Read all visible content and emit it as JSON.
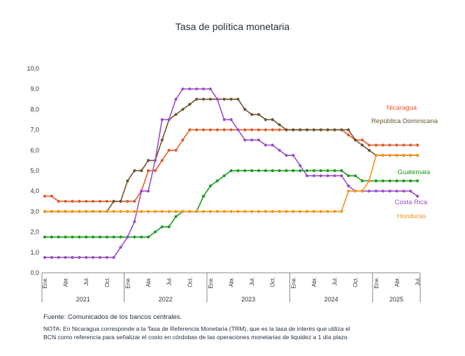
{
  "chart_data": {
    "type": "line",
    "title": "Tasa de política monetaria",
    "xlabel": "",
    "ylabel": "",
    "ylim": [
      0,
      10
    ],
    "yticks": [
      "0,0",
      "1,0",
      "2,0",
      "3,0",
      "4,0",
      "5,0",
      "6,0",
      "7,0",
      "8,0",
      "9,0",
      "10,0"
    ],
    "grid": false,
    "legend": "inline labels at right end of series",
    "x": [
      "Ene. 2021",
      "Feb. 2021",
      "Mar. 2021",
      "Abr. 2021",
      "May. 2021",
      "Jun. 2021",
      "Jul. 2021",
      "Ago. 2021",
      "Sep. 2021",
      "Oct. 2021",
      "Nov. 2021",
      "Dic. 2021",
      "Ene. 2022",
      "Feb. 2022",
      "Mar. 2022",
      "Abr. 2022",
      "May. 2022",
      "Jun. 2022",
      "Jul. 2022",
      "Ago. 2022",
      "Sep. 2022",
      "Oct. 2022",
      "Nov. 2022",
      "Dic. 2022",
      "Ene. 2023",
      "Feb. 2023",
      "Mar. 2023",
      "Abr. 2023",
      "May. 2023",
      "Jun. 2023",
      "Jul. 2023",
      "Ago. 2023",
      "Sep. 2023",
      "Oct. 2023",
      "Nov. 2023",
      "Dic. 2023",
      "Ene. 2024",
      "Feb. 2024",
      "Mar. 2024",
      "Abr. 2024",
      "May. 2024",
      "Jun. 2024",
      "Jul. 2024",
      "Ago. 2024",
      "Sep. 2024",
      "Oct. 2024",
      "Nov. 2024",
      "Dic. 2024",
      "Ene. 2025",
      "Feb. 2025",
      "Mar. 2025",
      "Abr. 2025",
      "May. 2025",
      "Jun. 2025",
      "Jul. 2025"
    ],
    "x_tick_labels": [
      "Ene.",
      "Abr.",
      "Jul.",
      "Oct.",
      "Ene.",
      "Abr.",
      "Jul.",
      "Oct.",
      "Ene.",
      "Abr.",
      "Jul.",
      "Oct.",
      "Ene.",
      "Abr.",
      "Jul.",
      "Oct.",
      "Ene.",
      "Abr.",
      "Jul."
    ],
    "x_tick_months": [
      0,
      3,
      6,
      9,
      12,
      15,
      18,
      21,
      24,
      27,
      30,
      33,
      36,
      39,
      42,
      45,
      48,
      51,
      54
    ],
    "year_labels": [
      "2021",
      "2022",
      "2023",
      "2024",
      "2025"
    ],
    "series": [
      {
        "name": "Nicaragua",
        "color": "#e35a2b",
        "values": [
          3.75,
          3.75,
          3.5,
          3.5,
          3.5,
          3.5,
          3.5,
          3.5,
          3.5,
          3.5,
          3.5,
          3.5,
          3.5,
          3.5,
          4.0,
          5.0,
          5.0,
          5.5,
          6.0,
          6.0,
          6.5,
          7.0,
          7.0,
          7.0,
          7.0,
          7.0,
          7.0,
          7.0,
          7.0,
          7.0,
          7.0,
          7.0,
          7.0,
          7.0,
          7.0,
          7.0,
          7.0,
          7.0,
          7.0,
          7.0,
          7.0,
          7.0,
          7.0,
          7.0,
          6.75,
          6.5,
          6.5,
          6.25,
          6.25,
          6.25,
          6.25,
          6.25,
          6.25,
          6.25,
          6.25
        ]
      },
      {
        "name": "República Dominicana",
        "color": "#6e5530",
        "values": [
          3.0,
          3.0,
          3.0,
          3.0,
          3.0,
          3.0,
          3.0,
          3.0,
          3.0,
          3.0,
          3.5,
          3.5,
          4.5,
          5.0,
          5.0,
          5.5,
          5.5,
          6.5,
          7.5,
          7.75,
          8.0,
          8.25,
          8.5,
          8.5,
          8.5,
          8.5,
          8.5,
          8.5,
          8.5,
          8.0,
          7.75,
          7.75,
          7.5,
          7.5,
          7.25,
          7.0,
          7.0,
          7.0,
          7.0,
          7.0,
          7.0,
          7.0,
          7.0,
          7.0,
          7.0,
          6.5,
          6.25,
          6.0,
          5.75,
          5.75,
          5.75,
          5.75,
          5.75,
          5.75,
          5.75
        ]
      },
      {
        "name": "Guatemala",
        "color": "#1f9a1f",
        "values": [
          1.75,
          1.75,
          1.75,
          1.75,
          1.75,
          1.75,
          1.75,
          1.75,
          1.75,
          1.75,
          1.75,
          1.75,
          1.75,
          1.75,
          1.75,
          1.75,
          2.0,
          2.25,
          2.25,
          2.75,
          3.0,
          3.0,
          3.0,
          3.75,
          4.25,
          4.5,
          4.75,
          5.0,
          5.0,
          5.0,
          5.0,
          5.0,
          5.0,
          5.0,
          5.0,
          5.0,
          5.0,
          5.0,
          5.0,
          5.0,
          5.0,
          5.0,
          5.0,
          5.0,
          4.75,
          4.75,
          4.5,
          4.5,
          4.5,
          4.5,
          4.5,
          4.5,
          4.5,
          4.5,
          4.5
        ]
      },
      {
        "name": "Costa Rica",
        "color": "#9b4fc8",
        "values": [
          0.75,
          0.75,
          0.75,
          0.75,
          0.75,
          0.75,
          0.75,
          0.75,
          0.75,
          0.75,
          0.75,
          1.25,
          1.75,
          2.5,
          4.0,
          4.0,
          5.5,
          7.5,
          7.5,
          8.5,
          9.0,
          9.0,
          9.0,
          9.0,
          9.0,
          8.5,
          7.5,
          7.5,
          7.0,
          6.5,
          6.5,
          6.5,
          6.25,
          6.25,
          6.0,
          5.75,
          5.75,
          5.25,
          4.75,
          4.75,
          4.75,
          4.75,
          4.75,
          4.75,
          4.25,
          4.0,
          4.0,
          4.0,
          4.0,
          4.0,
          4.0,
          4.0,
          4.0,
          4.0,
          3.75
        ]
      },
      {
        "name": "Honduras",
        "color": "#f5921e",
        "values": [
          3.0,
          3.0,
          3.0,
          3.0,
          3.0,
          3.0,
          3.0,
          3.0,
          3.0,
          3.0,
          3.0,
          3.0,
          3.0,
          3.0,
          3.0,
          3.0,
          3.0,
          3.0,
          3.0,
          3.0,
          3.0,
          3.0,
          3.0,
          3.0,
          3.0,
          3.0,
          3.0,
          3.0,
          3.0,
          3.0,
          3.0,
          3.0,
          3.0,
          3.0,
          3.0,
          3.0,
          3.0,
          3.0,
          3.0,
          3.0,
          3.0,
          3.0,
          3.0,
          3.0,
          4.0,
          4.0,
          4.0,
          4.5,
          5.75,
          5.75,
          5.75,
          5.75,
          5.75,
          5.75,
          5.75
        ]
      }
    ]
  },
  "footer": {
    "source": "Fuente: Comunicados de los bancos centrales.",
    "note": "NOTA: En Nicaragua corresponde a la Tasa de Referencia Monetaria (TRM), que es la tasa de interés que utiliza el BCN como referencia para señalizar el costo en córdobas de las operaciones monetarias de liquidez a 1 día plazo."
  }
}
